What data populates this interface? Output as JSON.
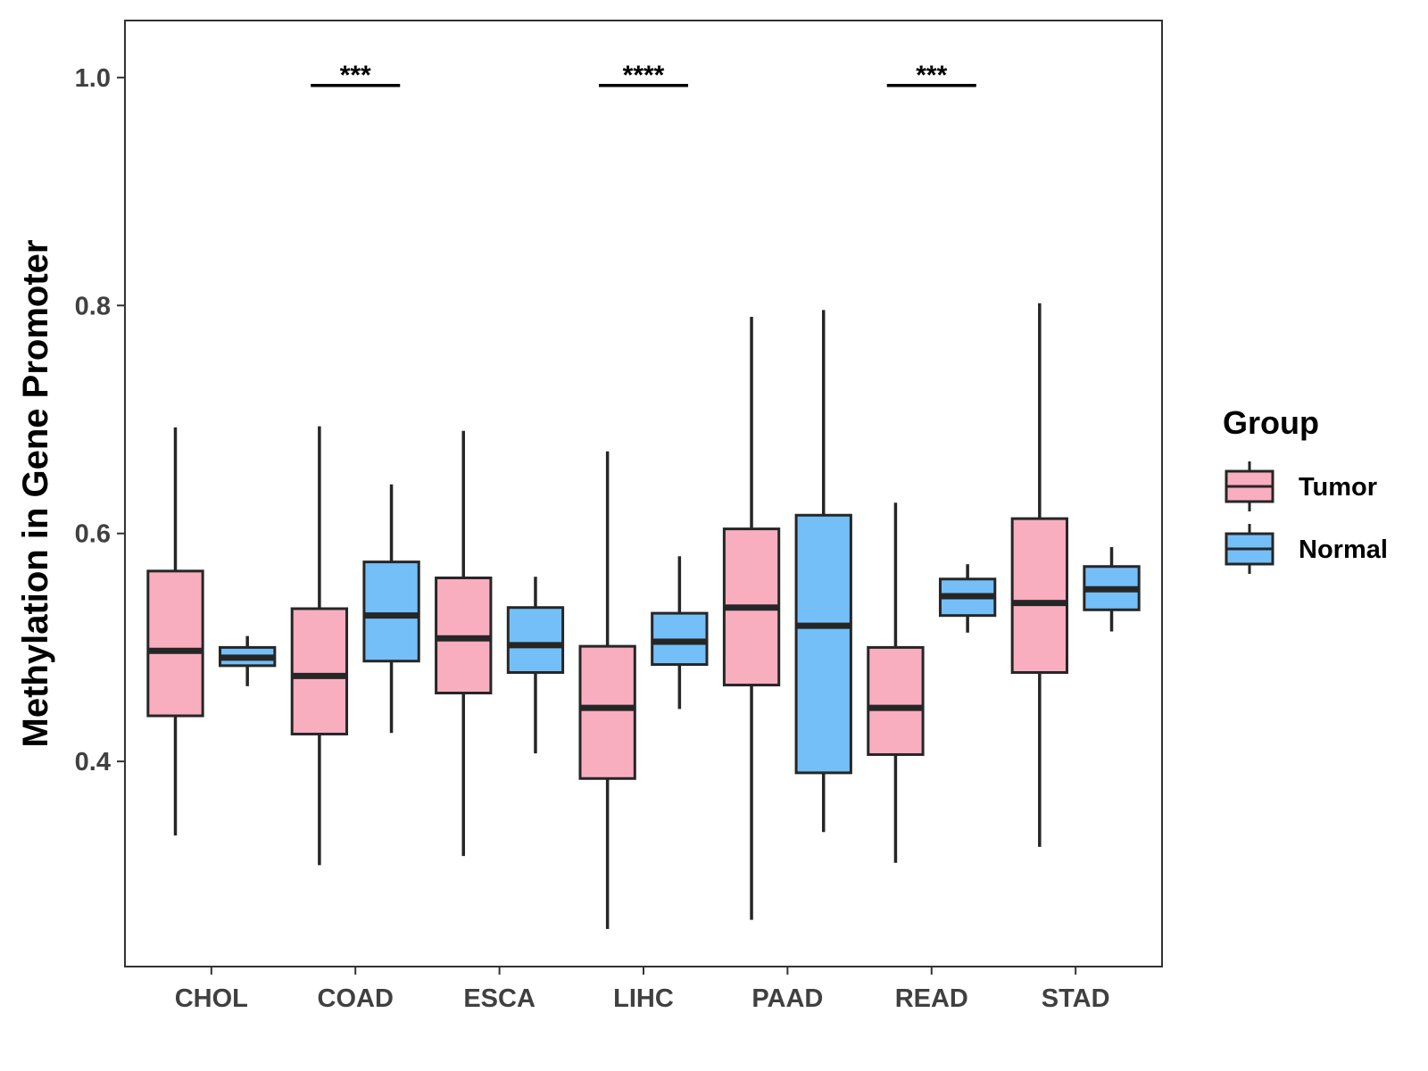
{
  "chart_data": {
    "type": "boxplot",
    "title": "",
    "xlabel": "",
    "ylabel": "Methylation in Gene Promoter",
    "ylim": [
      0.22,
      1.05
    ],
    "yticks": [
      0.4,
      0.6,
      0.8,
      1.0
    ],
    "ytick_labels": [
      "0.4",
      "0.6",
      "0.8",
      "1.0"
    ],
    "grid": false,
    "categories": [
      "CHOL",
      "COAD",
      "ESCA",
      "LIHC",
      "PAAD",
      "READ",
      "STAD"
    ],
    "legend": {
      "title": "Group",
      "position": "right"
    },
    "series": [
      {
        "name": "Tumor",
        "color": "#F9AEC0",
        "boxes": [
          {
            "min": 0.335,
            "q1": 0.44,
            "median": 0.497,
            "q3": 0.567,
            "max": 0.693
          },
          {
            "min": 0.309,
            "q1": 0.424,
            "median": 0.475,
            "q3": 0.534,
            "max": 0.694
          },
          {
            "min": 0.317,
            "q1": 0.46,
            "median": 0.508,
            "q3": 0.561,
            "max": 0.69
          },
          {
            "min": 0.253,
            "q1": 0.385,
            "median": 0.447,
            "q3": 0.501,
            "max": 0.672
          },
          {
            "min": 0.261,
            "q1": 0.467,
            "median": 0.535,
            "q3": 0.604,
            "max": 0.79
          },
          {
            "min": 0.311,
            "q1": 0.406,
            "median": 0.447,
            "q3": 0.5,
            "max": 0.627
          },
          {
            "min": 0.325,
            "q1": 0.478,
            "median": 0.539,
            "q3": 0.613,
            "max": 0.802
          }
        ]
      },
      {
        "name": "Normal",
        "color": "#74BFF8",
        "boxes": [
          {
            "min": 0.466,
            "q1": 0.484,
            "median": 0.491,
            "q3": 0.5,
            "max": 0.51
          },
          {
            "min": 0.425,
            "q1": 0.488,
            "median": 0.528,
            "q3": 0.575,
            "max": 0.643
          },
          {
            "min": 0.407,
            "q1": 0.478,
            "median": 0.502,
            "q3": 0.535,
            "max": 0.562
          },
          {
            "min": 0.446,
            "q1": 0.485,
            "median": 0.505,
            "q3": 0.53,
            "max": 0.58
          },
          {
            "min": 0.338,
            "q1": 0.39,
            "median": 0.519,
            "q3": 0.616,
            "max": 0.796
          },
          {
            "min": 0.513,
            "q1": 0.528,
            "median": 0.545,
            "q3": 0.56,
            "max": 0.573
          },
          {
            "min": 0.514,
            "q1": 0.533,
            "median": 0.551,
            "q3": 0.571,
            "max": 0.588
          }
        ]
      }
    ],
    "significance": [
      {
        "category": "COAD",
        "label": "***",
        "y": 0.993
      },
      {
        "category": "LIHC",
        "label": "****",
        "y": 0.993
      },
      {
        "category": "READ",
        "label": "***",
        "y": 0.993
      }
    ]
  }
}
